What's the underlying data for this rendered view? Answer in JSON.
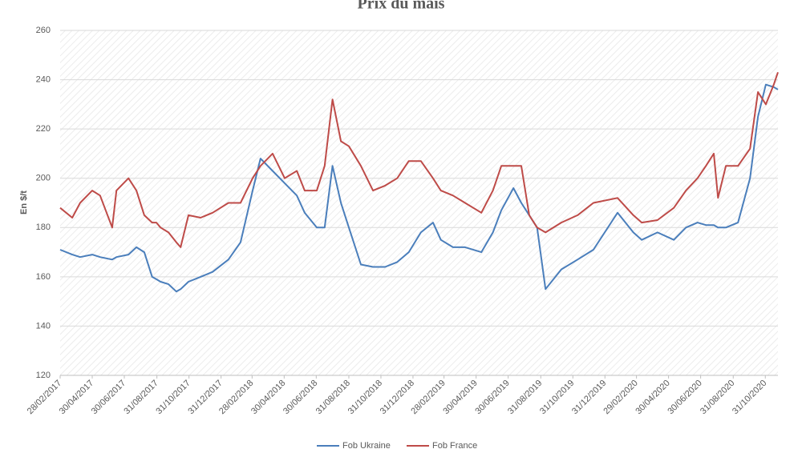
{
  "chart_data": {
    "type": "line",
    "title": "Prix du maïs",
    "y_label": "En $/t",
    "x": [
      "2017-02-28",
      "2017-03-23",
      "2017-04-07",
      "2017-04-30",
      "2017-05-15",
      "2017-06-07",
      "2017-06-15",
      "2017-07-08",
      "2017-07-23",
      "2017-08-07",
      "2017-08-22",
      "2017-08-30",
      "2017-09-07",
      "2017-09-22",
      "2017-10-07",
      "2017-10-15",
      "2017-10-30",
      "2017-11-22",
      "2017-12-15",
      "2018-01-14",
      "2018-02-06",
      "2018-03-01",
      "2018-03-16",
      "2018-04-08",
      "2018-05-01",
      "2018-05-24",
      "2018-06-08",
      "2018-07-01",
      "2018-07-16",
      "2018-07-31",
      "2018-08-16",
      "2018-08-31",
      "2018-09-23",
      "2018-10-16",
      "2018-11-08",
      "2018-12-01",
      "2018-12-23",
      "2019-01-15",
      "2019-02-07",
      "2019-02-22",
      "2019-03-17",
      "2019-04-09",
      "2019-05-10",
      "2019-06-01",
      "2019-06-17",
      "2019-07-10",
      "2019-07-25",
      "2019-08-09",
      "2019-08-24",
      "2019-09-09",
      "2019-10-09",
      "2019-11-09",
      "2019-12-09",
      "2020-01-24",
      "2020-02-23",
      "2020-03-10",
      "2020-04-09",
      "2020-05-10",
      "2020-06-02",
      "2020-06-24",
      "2020-07-10",
      "2020-07-25",
      "2020-08-02",
      "2020-08-17",
      "2020-09-09",
      "2020-10-02",
      "2020-10-17",
      "2020-11-01",
      "2020-11-16",
      "2020-11-24"
    ],
    "series": [
      {
        "name": "Fob Ukraine",
        "color": "#4a7ebb",
        "values": [
          171,
          169,
          168,
          169,
          168,
          167,
          168,
          169,
          172,
          170,
          160,
          159,
          158,
          157,
          154,
          155,
          158,
          160,
          162,
          167,
          174,
          195,
          208,
          203,
          198,
          193,
          186,
          180,
          180,
          205,
          190,
          180,
          165,
          164,
          164,
          166,
          170,
          178,
          182,
          175,
          172,
          172,
          170,
          178,
          187,
          196,
          190,
          185,
          180,
          155,
          163,
          167,
          171,
          186,
          178,
          175,
          178,
          175,
          180,
          182,
          181,
          181,
          180,
          180,
          182,
          200,
          225,
          238,
          237,
          236
        ]
      },
      {
        "name": "Fob France",
        "color": "#be4b48",
        "values": [
          188,
          184,
          190,
          195,
          193,
          180,
          195,
          200,
          195,
          185,
          182,
          182,
          180,
          178,
          174,
          172,
          185,
          184,
          186,
          190,
          190,
          200,
          205,
          210,
          200,
          203,
          195,
          195,
          205,
          232,
          215,
          213,
          205,
          195,
          197,
          200,
          207,
          207,
          200,
          195,
          193,
          190,
          186,
          195,
          205,
          205,
          205,
          185,
          180,
          178,
          182,
          185,
          190,
          192,
          185,
          182,
          183,
          188,
          195,
          200,
          205,
          210,
          192,
          205,
          205,
          212,
          235,
          230,
          238,
          243
        ]
      }
    ],
    "xlim": [
      "2017-02-28",
      "2020-11-24"
    ],
    "xticks": [
      {
        "value": "2017-02-28",
        "label": "28/02/2017"
      },
      {
        "value": "2017-04-30",
        "label": "30/04/2017"
      },
      {
        "value": "2017-06-30",
        "label": "30/06/2017"
      },
      {
        "value": "2017-08-31",
        "label": "31/08/2017"
      },
      {
        "value": "2017-10-31",
        "label": "31/10/2017"
      },
      {
        "value": "2017-12-31",
        "label": "31/12/2017"
      },
      {
        "value": "2018-02-28",
        "label": "28/02/2018"
      },
      {
        "value": "2018-04-30",
        "label": "30/04/2018"
      },
      {
        "value": "2018-06-30",
        "label": "30/06/2018"
      },
      {
        "value": "2018-08-31",
        "label": "31/08/2018"
      },
      {
        "value": "2018-10-31",
        "label": "31/10/2018"
      },
      {
        "value": "2018-12-31",
        "label": "31/12/2018"
      },
      {
        "value": "2019-02-28",
        "label": "28/02/2019"
      },
      {
        "value": "2019-04-30",
        "label": "30/04/2019"
      },
      {
        "value": "2019-06-30",
        "label": "30/06/2019"
      },
      {
        "value": "2019-08-31",
        "label": "31/08/2019"
      },
      {
        "value": "2019-10-31",
        "label": "31/10/2019"
      },
      {
        "value": "2019-12-31",
        "label": "31/12/2019"
      },
      {
        "value": "2020-02-29",
        "label": "29/02/2020"
      },
      {
        "value": "2020-04-30",
        "label": "30/04/2020"
      },
      {
        "value": "2020-06-30",
        "label": "30/06/2020"
      },
      {
        "value": "2020-08-31",
        "label": "31/08/2020"
      },
      {
        "value": "2020-10-31",
        "label": "31/10/2020"
      }
    ],
    "ylim": [
      120,
      260
    ],
    "yticks": [
      120,
      140,
      160,
      180,
      200,
      220,
      240,
      260
    ],
    "grid": true
  }
}
